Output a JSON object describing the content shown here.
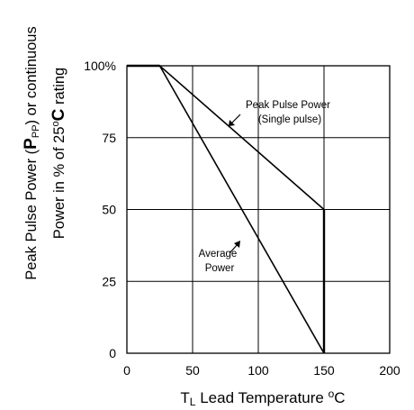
{
  "chart_data": {
    "type": "line",
    "title": "",
    "xlabel": {
      "main": "T",
      "sub": "L",
      "rest": " Lead Temperature ",
      "deg": "o",
      "unit": "C"
    },
    "ylabel": {
      "line1_a": "Peak Pulse Power (",
      "line1_p": "P",
      "line1_sub": "PP",
      "line1_b": ") or continuous",
      "line2_a": "Power in % of ",
      "line2_big": "25",
      "line2_deg": "o",
      "line2_c": "C",
      "line2_b": " rating"
    },
    "xlim": [
      0,
      200
    ],
    "ylim": [
      0,
      100
    ],
    "x_ticks": [
      "0",
      "50",
      "100",
      "150",
      "200"
    ],
    "y_ticks": [
      "0",
      "25",
      "50",
      "75",
      "100%"
    ],
    "grid": true,
    "series": [
      {
        "name": "Peak Pulse Power (Single pulse)",
        "x": [
          0,
          25,
          150,
          150
        ],
        "y": [
          100,
          100,
          50,
          0
        ]
      },
      {
        "name": "Average Power",
        "x": [
          0,
          25,
          150
        ],
        "y": [
          100,
          100,
          0
        ]
      }
    ],
    "annotations": [
      {
        "lines": [
          "Peak Pulse Power",
          "(Single pulse)"
        ],
        "series": 0
      },
      {
        "lines": [
          "Average",
          "Power"
        ],
        "series": 1
      }
    ]
  }
}
